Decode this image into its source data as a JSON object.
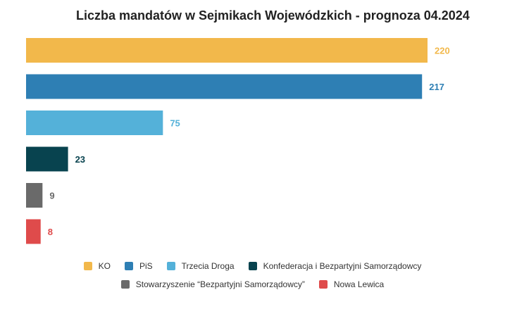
{
  "chart_data": {
    "type": "bar",
    "orientation": "horizontal",
    "title": "Liczba mandatów w Sejmikach Wojewódzkich - prognoza 04.2024",
    "categories": [
      "KO",
      "PiS",
      "Trzecia Droga",
      "Konfederacja i Bezpartyjni Samorządowcy",
      "Stowarzyszenie “Bezpartyjni Samorządowcy”",
      "Nowa Lewica"
    ],
    "values": [
      220,
      217,
      75,
      23,
      9,
      8
    ],
    "colors": [
      "#f2b84b",
      "#2e7fb4",
      "#54b1d9",
      "#08434f",
      "#6a6a6a",
      "#df4b4b"
    ],
    "xlim": [
      0,
      220
    ],
    "grid": false,
    "data_labels": true,
    "legend_position": "bottom"
  }
}
